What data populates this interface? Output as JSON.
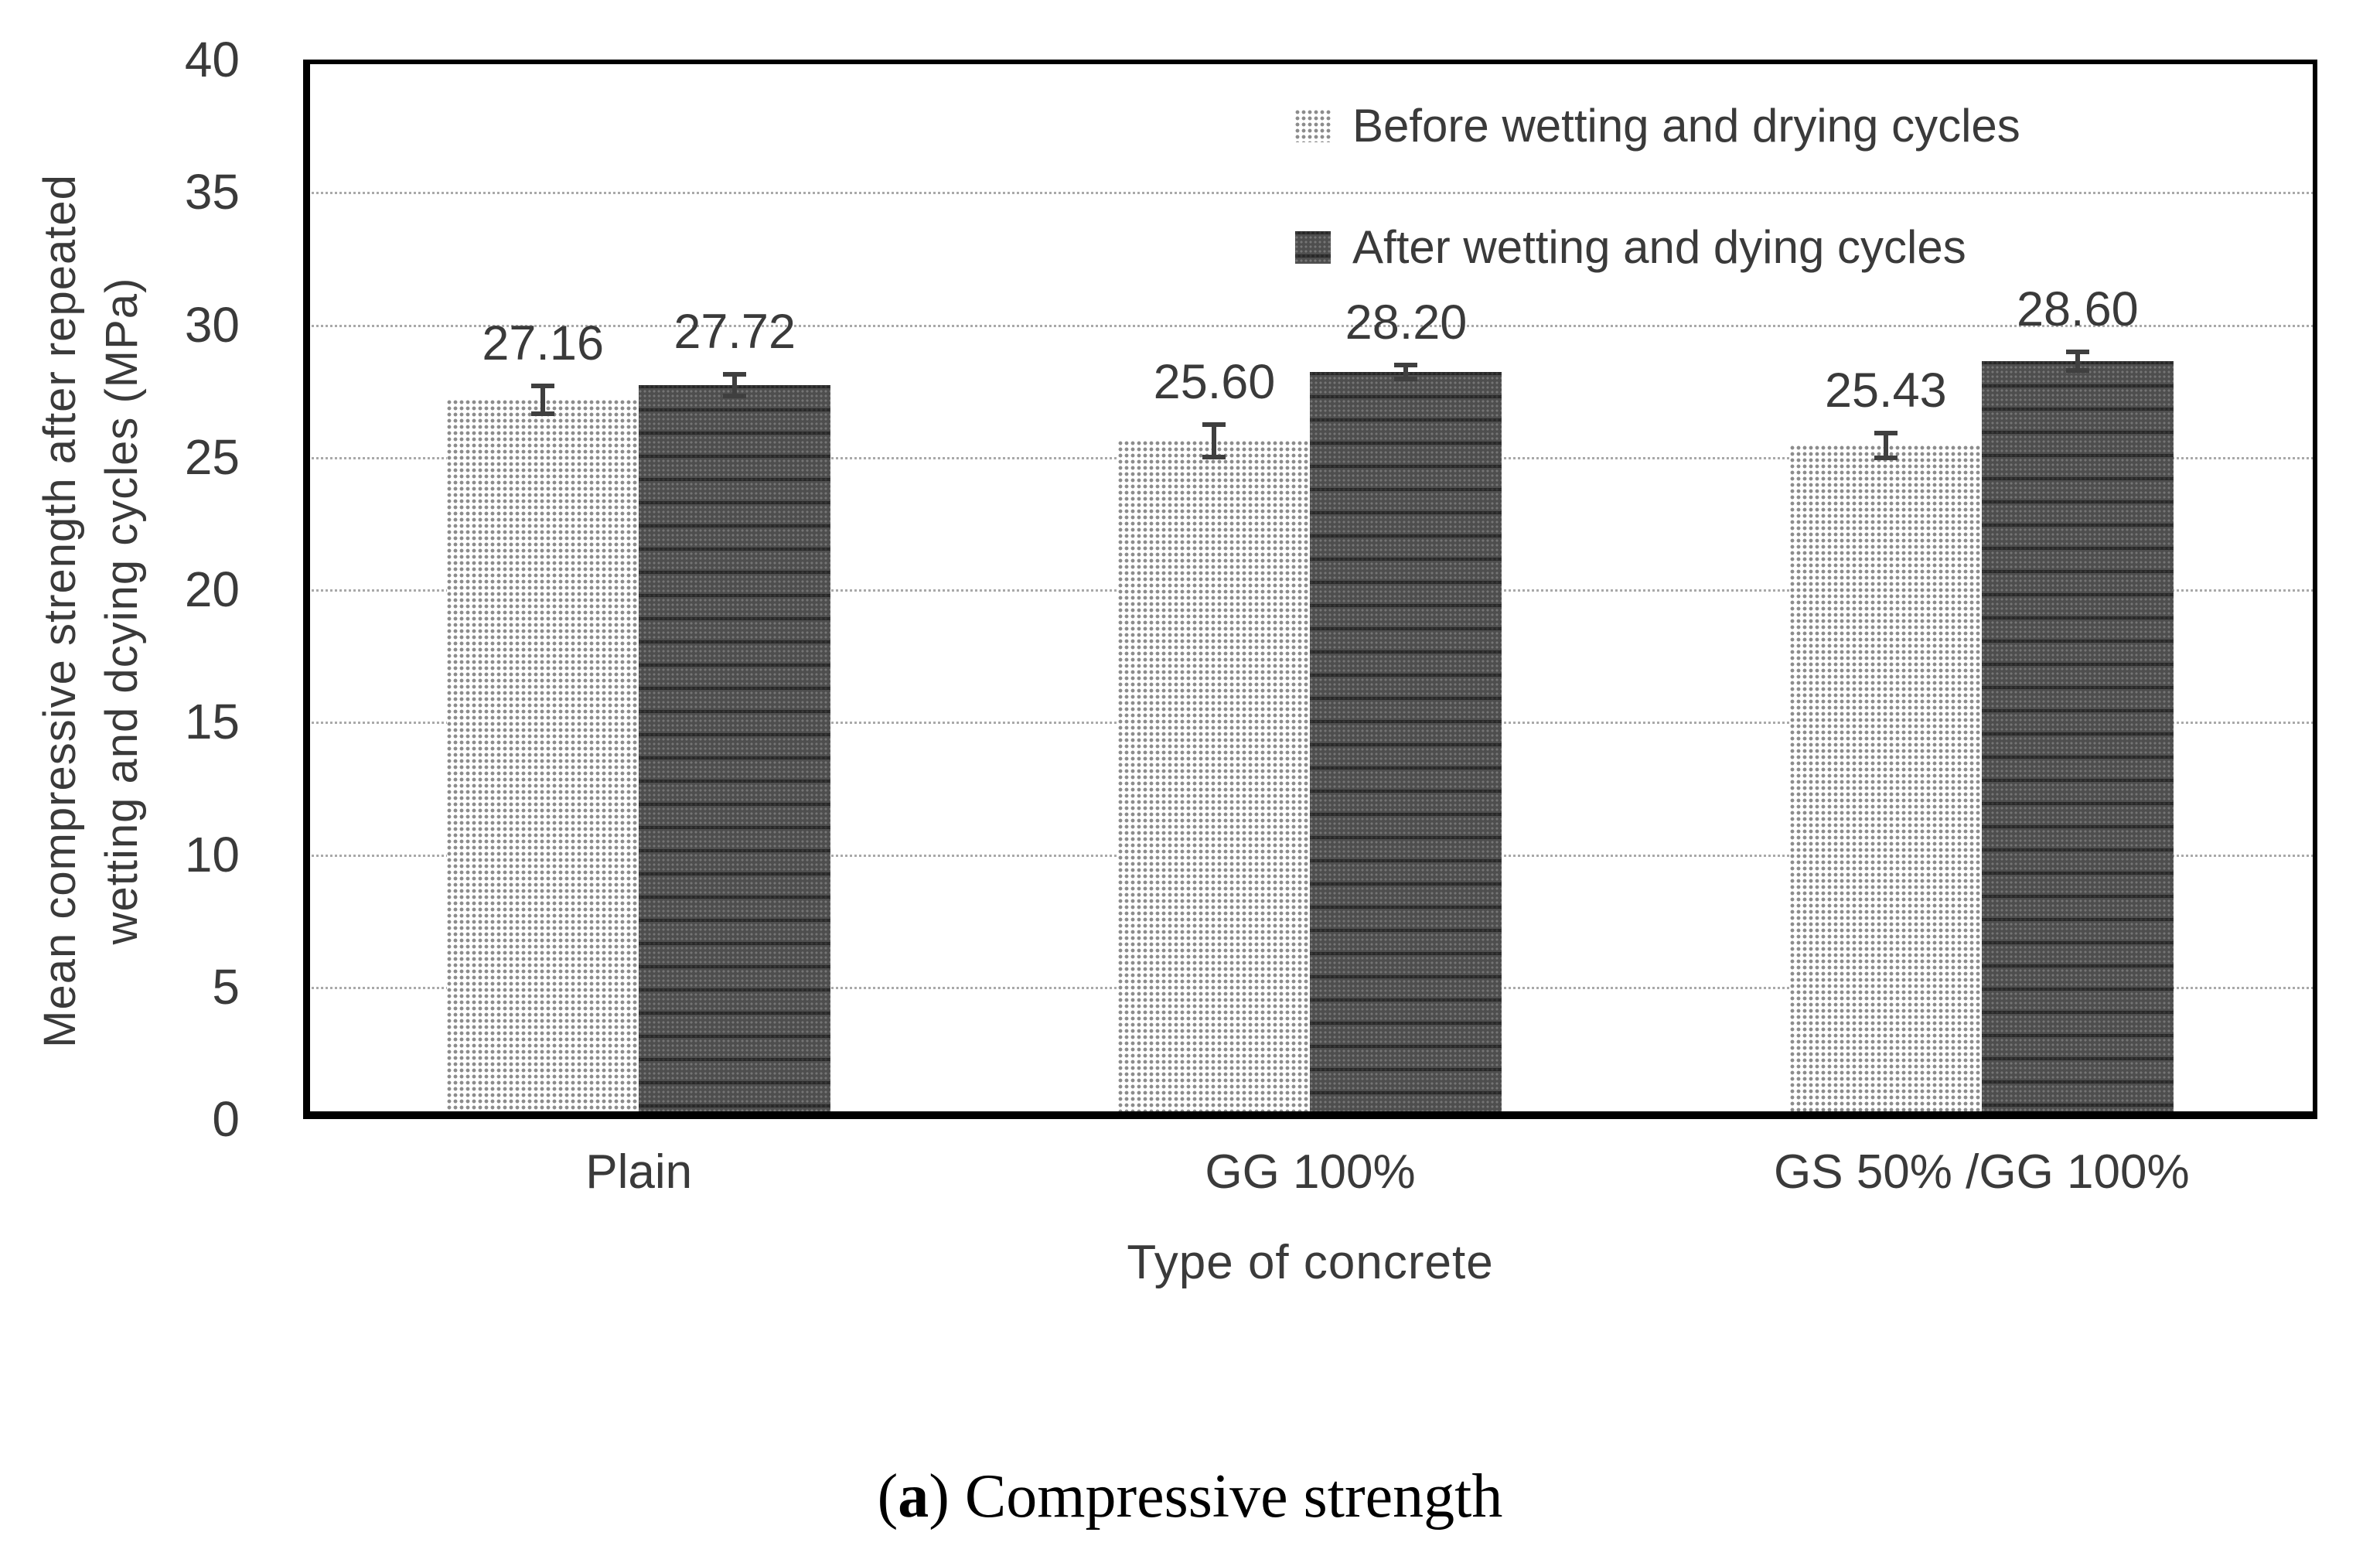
{
  "figure": {
    "caption": {
      "prefix": "(",
      "letter": "a",
      "suffix": ") Compressive strength"
    }
  },
  "chart_data": {
    "type": "bar",
    "categories": [
      "Plain",
      "GG 100%",
      "GS 50% /GG 100%"
    ],
    "series": [
      {
        "name": "Before wetting and drying cycles",
        "values": [
          27.16,
          25.6,
          25.43
        ],
        "value_labels": [
          "27.16",
          "25.60",
          "25.43"
        ],
        "errors": [
          0.6,
          0.7,
          0.55
        ],
        "fill": "light-gray-halftone",
        "approx_hex": "#c6c6c6"
      },
      {
        "name": "After wetting and dying cycles",
        "values": [
          27.72,
          28.2,
          28.6
        ],
        "value_labels": [
          "27.72",
          "28.20",
          "28.60"
        ],
        "errors": [
          0.5,
          0.35,
          0.45
        ],
        "fill": "dark-gray-hatch",
        "approx_hex": "#454545"
      }
    ],
    "xlabel": "Type of concrete",
    "ylabel_lines": [
      "Mean compressive strength after repeated",
      "wetting and dcying cycles (MPa)"
    ],
    "ylim": [
      0,
      40
    ],
    "yticks": [
      0,
      5,
      10,
      15,
      20,
      25,
      30,
      35,
      40
    ],
    "grid": {
      "horizontal": true,
      "style": "dotted",
      "color": "#a9a9a9"
    },
    "legend_position": "top-right-inside",
    "error_bars": true
  }
}
